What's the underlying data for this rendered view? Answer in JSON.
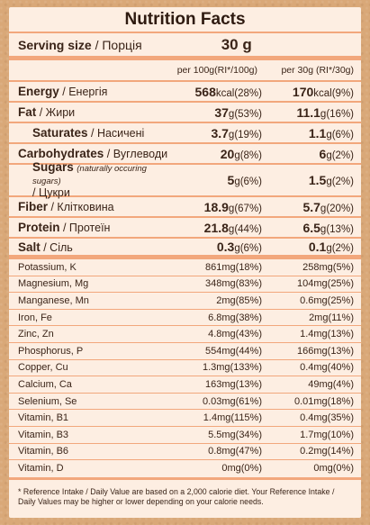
{
  "title": "Nutrition Facts",
  "serving": {
    "label_bold": "Serving size",
    "label_rest": " / Порція",
    "value": "30 g"
  },
  "columns": {
    "per100": "per 100g(RI*/100g)",
    "per30": "per 30g (RI*/30g)"
  },
  "main": [
    {
      "bold": "Energy",
      "rest": " / Енергія",
      "v1n": "568",
      "v1u": "kcal(28%)",
      "v2n": "170",
      "v2u": "kcal(9%)"
    },
    {
      "bold": "Fat",
      "rest": " / Жири",
      "v1n": "37",
      "v1u": "g(53%)",
      "v2n": "11.1",
      "v2u": "g(16%)"
    },
    {
      "bold": "Saturates",
      "rest": " / Насичені",
      "v1n": "3.7",
      "v1u": "g(19%)",
      "v2n": "1.1",
      "v2u": "g(6%)"
    },
    {
      "bold": "Carbohydrates",
      "rest": " / Вуглеводи",
      "v1n": "20",
      "v1u": "g(8%)",
      "v2n": "6",
      "v2u": "g(2%)"
    },
    {
      "bold": "Sugars",
      "italic": "(naturally occuring sugars)",
      "rest2": "/ Цукри",
      "v1n": "5",
      "v1u": "g(6%)",
      "v2n": "1.5",
      "v2u": "g(2%)"
    },
    {
      "bold": "Fiber",
      "rest": " / Клітковина",
      "v1n": "18.9",
      "v1u": "g(67%)",
      "v2n": "5.7",
      "v2u": "g(20%)"
    },
    {
      "bold": "Protein",
      "rest": " / Протеїн",
      "v1n": "21.8",
      "v1u": "g(44%)",
      "v2n": "6.5",
      "v2u": "g(13%)"
    },
    {
      "bold": "Salt",
      "rest": " / Сіль",
      "v1n": "0.3",
      "v1u": "g(6%)",
      "v2n": "0.1",
      "v2u": "g(2%)"
    }
  ],
  "minerals": [
    {
      "name": "Potassium, K",
      "v1": "861mg(18%)",
      "v2": "258mg(5%)"
    },
    {
      "name": "Magnesium, Mg",
      "v1": "348mg(83%)",
      "v2": "104mg(25%)"
    },
    {
      "name": "Manganese, Mn",
      "v1": "2mg(85%)",
      "v2": "0.6mg(25%)"
    },
    {
      "name": "Iron, Fe",
      "v1": "6.8mg(38%)",
      "v2": "2mg(11%)"
    },
    {
      "name": "Zinc, Zn",
      "v1": "4.8mg(43%)",
      "v2": "1.4mg(13%)"
    },
    {
      "name": "Phosphorus, P",
      "v1": "554mg(44%)",
      "v2": "166mg(13%)"
    },
    {
      "name": "Copper, Cu",
      "v1": "1.3mg(133%)",
      "v2": "0.4mg(40%)"
    },
    {
      "name": "Calcium, Ca",
      "v1": "163mg(13%)",
      "v2": "49mg(4%)"
    },
    {
      "name": "Selenium, Se",
      "v1": "0.03mg(61%)",
      "v2": "0.01mg(18%)"
    },
    {
      "name": "Vitamin, B1",
      "v1": "1.4mg(115%)",
      "v2": "0.4mg(35%)"
    },
    {
      "name": "Vitamin, B3",
      "v1": "5.5mg(34%)",
      "v2": "1.7mg(10%)"
    },
    {
      "name": "Vitamin, B6",
      "v1": "0.8mg(47%)",
      "v2": "0.2mg(14%)"
    },
    {
      "name": "Vitamin, D",
      "v1": "0mg(0%)",
      "v2": "0mg(0%)"
    }
  ],
  "footnote": "* Reference Intake / Daily Value are based on a 2,000 calorie diet. Your Reference Intake / Daily Values may be higher or lower depending on your calorie needs.",
  "colors": {
    "accent": "#f2a77c",
    "panel": "#fdeee2",
    "background": "#d9a878"
  }
}
